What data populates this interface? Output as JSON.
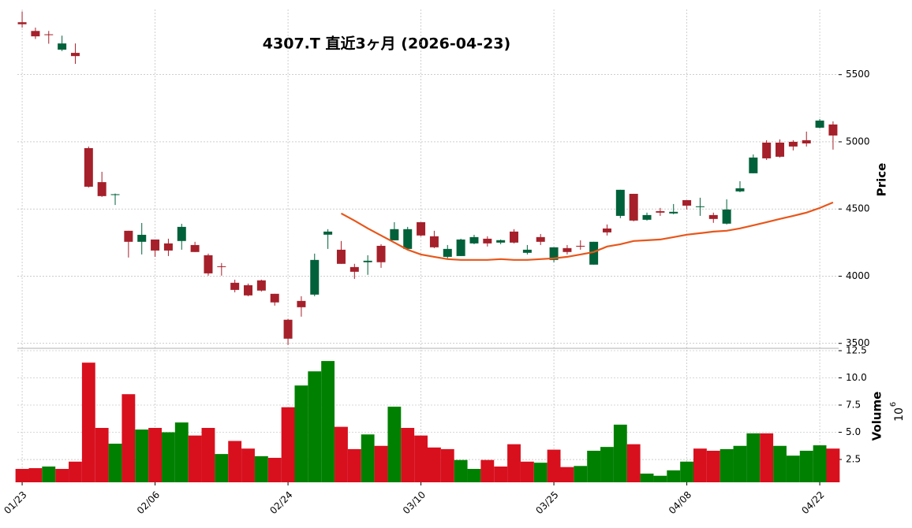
{
  "chart_data": {
    "type": "candlestick",
    "title": "4307.T  直近3ヶ月  (2026-04-23)",
    "ylabel": "Price",
    "volume_label": "Volume",
    "volume_scale_base": "10",
    "volume_scale_exponent": "6",
    "categories": [
      "01/23",
      null,
      null,
      null,
      null,
      null,
      null,
      null,
      null,
      null,
      "02/06",
      null,
      null,
      null,
      null,
      null,
      null,
      null,
      null,
      null,
      "02/24",
      null,
      null,
      null,
      null,
      null,
      null,
      null,
      null,
      null,
      "03/10",
      null,
      null,
      null,
      null,
      null,
      null,
      null,
      null,
      null,
      "03/25",
      null,
      null,
      null,
      null,
      null,
      null,
      null,
      null,
      null,
      "04/08",
      null,
      null,
      null,
      null,
      null,
      null,
      null,
      null,
      null,
      "04/22",
      null
    ],
    "open": [
      5890,
      5825,
      5800,
      5686,
      5662,
      4953,
      4700,
      4604,
      4338,
      4256,
      4273,
      4244,
      4262,
      4232,
      4156,
      4074,
      3951,
      3933,
      3969,
      3869,
      3676,
      3816,
      3863,
      4309,
      4197,
      4068,
      4104,
      4226,
      4267,
      4203,
      4402,
      4297,
      4144,
      4150,
      4244,
      4279,
      4250,
      4332,
      4174,
      4291,
      4121,
      4209,
      4226,
      4086,
      4355,
      4449,
      4613,
      4420,
      4484,
      4467,
      4566,
      4514,
      4455,
      4391,
      4631,
      4766,
      4994,
      4994,
      5000,
      5012,
      5105,
      5129
    ],
    "high": [
      5970,
      5850,
      5825,
      5790,
      5732,
      4965,
      4777,
      4615,
      4338,
      4396,
      4273,
      4279,
      4390,
      4256,
      4168,
      4098,
      3974,
      3945,
      3974,
      3869,
      3682,
      3851,
      4168,
      4350,
      4262,
      4092,
      4156,
      4238,
      4402,
      4367,
      4402,
      4338,
      4232,
      4279,
      4308,
      4297,
      4273,
      4350,
      4232,
      4314,
      4215,
      4232,
      4267,
      4256,
      4385,
      4643,
      4613,
      4473,
      4508,
      4537,
      4566,
      4584,
      4473,
      4572,
      4707,
      4906,
      5012,
      5018,
      5012,
      5076,
      5170,
      5152
    ],
    "low": [
      5850,
      5765,
      5730,
      5675,
      5580,
      4660,
      4590,
      4530,
      4139,
      4162,
      4144,
      4150,
      4197,
      4180,
      4004,
      4004,
      3880,
      3851,
      3886,
      3781,
      3488,
      3699,
      3851,
      4203,
      4092,
      3980,
      4010,
      4062,
      4267,
      4203,
      4297,
      4209,
      4133,
      4150,
      4238,
      4221,
      4238,
      4244,
      4162,
      4232,
      4104,
      4162,
      4197,
      4086,
      4303,
      4432,
      4408,
      4414,
      4449,
      4461,
      4496,
      4449,
      4397,
      4385,
      4625,
      4766,
      4865,
      4883,
      4936,
      4965,
      5100,
      4942
    ],
    "close": [
      5875,
      5785,
      5795,
      5732,
      5638,
      4666,
      4596,
      4610,
      4256,
      4308,
      4191,
      4191,
      4367,
      4180,
      4021,
      4068,
      3898,
      3857,
      3893,
      3805,
      3535,
      3769,
      4121,
      4332,
      4092,
      4033,
      4115,
      4104,
      4350,
      4350,
      4303,
      4215,
      4203,
      4273,
      4291,
      4244,
      4268,
      4250,
      4197,
      4256,
      4215,
      4180,
      4220,
      4256,
      4326,
      4643,
      4414,
      4455,
      4473,
      4479,
      4525,
      4520,
      4426,
      4496,
      4654,
      4883,
      4877,
      4889,
      4965,
      4988,
      5158,
      5047
    ],
    "up_color": "#00613a",
    "down_color": "#a5202a",
    "ma": {
      "color": "#e8561a",
      "values": [
        null,
        null,
        null,
        null,
        null,
        null,
        null,
        null,
        null,
        null,
        null,
        null,
        null,
        null,
        null,
        null,
        null,
        null,
        null,
        null,
        null,
        null,
        null,
        null,
        4467,
        4414,
        4356,
        4303,
        4250,
        4197,
        4162,
        4144,
        4127,
        4121,
        4121,
        4121,
        4127,
        4121,
        4121,
        4127,
        4133,
        4144,
        4162,
        4180,
        4221,
        4238,
        4262,
        4267,
        4273,
        4291,
        4309,
        4320,
        4332,
        4338,
        4356,
        4379,
        4402,
        4426,
        4449,
        4473,
        4508,
        4549
      ]
    },
    "volume": [
      1.63,
      1.7,
      1.85,
      1.63,
      2.3,
      11.4,
      5.4,
      3.95,
      8.5,
      5.25,
      5.4,
      5.0,
      5.9,
      4.7,
      5.4,
      3.0,
      4.2,
      3.5,
      2.8,
      2.65,
      7.3,
      9.3,
      10.6,
      11.55,
      5.5,
      3.45,
      4.8,
      3.75,
      7.35,
      5.4,
      4.7,
      3.6,
      3.45,
      2.45,
      1.63,
      2.45,
      1.85,
      3.9,
      2.3,
      2.2,
      3.4,
      1.8,
      1.9,
      3.3,
      3.65,
      5.7,
      3.9,
      1.2,
      1.0,
      1.5,
      2.3,
      3.5,
      3.3,
      3.45,
      3.75,
      4.9,
      4.9,
      3.75,
      2.85,
      3.3,
      3.8,
      3.5
    ],
    "volume_colors": [
      "#d8101e",
      "#d8101e",
      "#008000",
      "#d8101e",
      "#d8101e",
      "#d8101e",
      "#d8101e",
      "#008000",
      "#d8101e",
      "#008000",
      "#d8101e",
      "#008000",
      "#008000",
      "#d8101e",
      "#d8101e",
      "#008000",
      "#d8101e",
      "#d8101e",
      "#008000",
      "#d8101e",
      "#d8101e",
      "#008000",
      "#008000",
      "#008000",
      "#d8101e",
      "#d8101e",
      "#008000",
      "#d8101e",
      "#008000",
      "#d8101e",
      "#d8101e",
      "#d8101e",
      "#d8101e",
      "#008000",
      "#008000",
      "#d8101e",
      "#d8101e",
      "#d8101e",
      "#d8101e",
      "#008000",
      "#d8101e",
      "#d8101e",
      "#008000",
      "#008000",
      "#008000",
      "#008000",
      "#d8101e",
      "#008000",
      "#008000",
      "#008000",
      "#008000",
      "#d8101e",
      "#d8101e",
      "#008000",
      "#008000",
      "#008000",
      "#d8101e",
      "#008000",
      "#008000",
      "#008000",
      "#008000",
      "#d8101e"
    ],
    "ylim": [
      3475,
      5985
    ],
    "yticks": [
      3500,
      4000,
      4500,
      5000,
      5500
    ],
    "volume_ylim": [
      0.4,
      12.5
    ],
    "volume_yticks": [
      {
        "value": 2.5,
        "label": "2.5"
      },
      {
        "value": 5,
        "label": "5.0"
      },
      {
        "value": 7.5,
        "label": "7.5"
      },
      {
        "value": 10,
        "label": "10.0"
      },
      {
        "value": 12.5,
        "label": "12.5"
      }
    ],
    "grid": true
  }
}
